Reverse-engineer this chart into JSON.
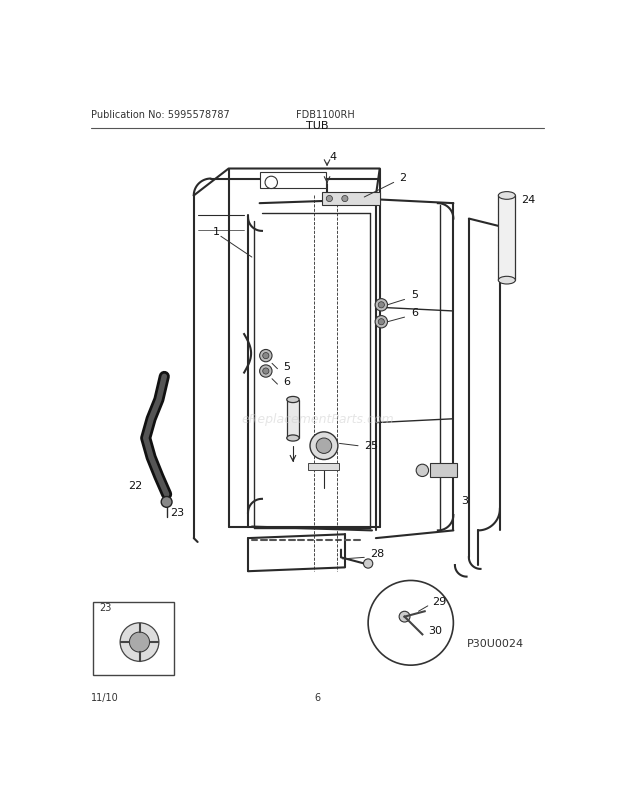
{
  "title": "TUB",
  "pub_no": "Publication No: 5995578787",
  "model": "FDB1100RH",
  "date": "11/10",
  "page": "6",
  "part_code": "P30U0024",
  "watermark": "eReplacementParts.com",
  "bg_color": "#ffffff",
  "line_color": "#2a2a2a"
}
